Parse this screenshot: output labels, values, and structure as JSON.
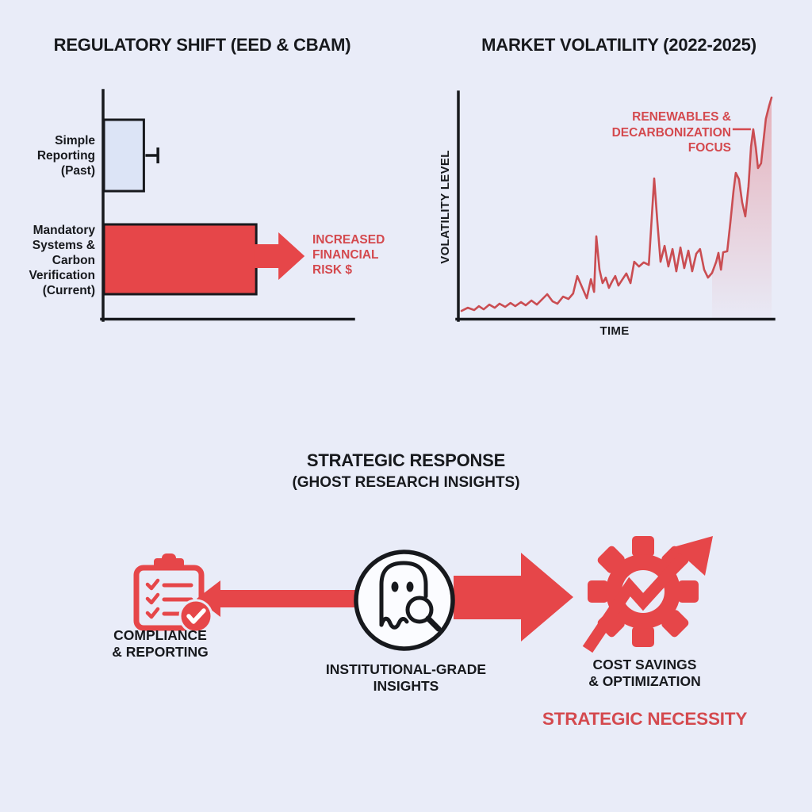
{
  "colors": {
    "background": "#e9ecf8",
    "ink": "#17191d",
    "shape_red": "#e64649",
    "text_red": "#d4494e",
    "line_red": "#ca4d52",
    "light_blue_bar": "#dce4f6",
    "circle_fill": "#fbfcff",
    "area_pink": "#e05a60",
    "white": "#ffffff"
  },
  "panels": {
    "regulatory": {
      "title": "REGULATORY SHIFT (EED & CBAM)",
      "bar1_label": "Simple\nReporting\n(Past)",
      "bar2_label": "Mandatory\nSystems &\nCarbon\nVerification\n(Current)",
      "risk_annotation": "INCREASED\nFINANCIAL\nRISK $"
    },
    "volatility": {
      "title": "MARKET VOLATILITY (2022-2025)",
      "ylabel": "VOLATILITY LEVEL",
      "xlabel": "TIME",
      "annotation": "RENEWABLES &\nDECARBONIZATION\nFOCUS"
    },
    "strategic": {
      "title": "STRATEGIC RESPONSE",
      "subtitle": "(GHOST RESEARCH INSIGHTS)",
      "left_label": "COMPLIANCE\n& REPORTING",
      "center_label": "INSTITUTIONAL-GRADE\nINSIGHTS",
      "right_label": "COST SAVINGS\n& OPTIMIZATION",
      "footer": "STRATEGIC NECESSITY",
      "icons": [
        {
          "name": "compliance-clipboard-icon",
          "meaning": "red clipboard with checklist and check badge"
        },
        {
          "name": "ghost-magnifier-icon",
          "meaning": "ghost with magnifying glass inside black circle"
        },
        {
          "name": "gear-growth-icon",
          "meaning": "red gear crossed by rising zigzag arrow"
        }
      ]
    }
  },
  "chart_data": [
    {
      "type": "bar",
      "orientation": "horizontal",
      "title": "REGULATORY SHIFT (EED & CBAM)",
      "categories": [
        "Simple Reporting (Past)",
        "Mandatory Systems & Carbon Verification (Current)"
      ],
      "values": [
        16,
        61
      ],
      "error_bars": [
        5,
        0
      ],
      "bar_colors": [
        "#dce4f6",
        "#e64649"
      ],
      "value_note": "relative scale, no numeric axis shown",
      "annotation": "INCREASED FINANCIAL RISK $",
      "xlim": [
        0,
        100
      ]
    },
    {
      "type": "line",
      "title": "MARKET VOLATILITY (2022-2025)",
      "xlabel": "TIME",
      "ylabel": "VOLATILITY LEVEL",
      "line_color": "#ca4d52",
      "annotation": "RENEWABLES & DECARBONIZATION FOCUS",
      "annotation_points_to": [
        93.2,
        83.9
      ],
      "area_fill_from_x": 79,
      "xlim": [
        0,
        100
      ],
      "ylim": [
        0,
        100
      ],
      "points": [
        [
          1.0,
          3.8
        ],
        [
          3.0,
          5.2
        ],
        [
          5.0,
          4.2
        ],
        [
          6.5,
          5.9
        ],
        [
          8.0,
          4.5
        ],
        [
          9.8,
          6.6
        ],
        [
          11.5,
          5.2
        ],
        [
          13.0,
          7.0
        ],
        [
          14.8,
          5.6
        ],
        [
          16.5,
          7.3
        ],
        [
          18.0,
          5.9
        ],
        [
          19.8,
          7.7
        ],
        [
          21.3,
          6.3
        ],
        [
          23.1,
          8.4
        ],
        [
          24.8,
          6.6
        ],
        [
          26.6,
          9.1
        ],
        [
          28.1,
          11.2
        ],
        [
          29.8,
          8.0
        ],
        [
          31.3,
          7.0
        ],
        [
          33.1,
          10.1
        ],
        [
          34.8,
          9.1
        ],
        [
          36.3,
          11.5
        ],
        [
          37.6,
          19.2
        ],
        [
          39.1,
          14.3
        ],
        [
          40.6,
          9.4
        ],
        [
          41.9,
          17.8
        ],
        [
          42.9,
          12.2
        ],
        [
          43.6,
          36.7
        ],
        [
          44.6,
          22.0
        ],
        [
          45.6,
          16.1
        ],
        [
          46.6,
          18.5
        ],
        [
          47.6,
          14.0
        ],
        [
          48.6,
          16.8
        ],
        [
          49.6,
          19.2
        ],
        [
          50.6,
          15.0
        ],
        [
          51.9,
          17.8
        ],
        [
          53.1,
          20.3
        ],
        [
          54.4,
          16.1
        ],
        [
          55.6,
          25.5
        ],
        [
          57.1,
          23.4
        ],
        [
          58.6,
          25.2
        ],
        [
          60.2,
          24.1
        ],
        [
          61.9,
          62.2
        ],
        [
          62.9,
          43.0
        ],
        [
          63.9,
          25.5
        ],
        [
          65.2,
          32.5
        ],
        [
          66.4,
          23.4
        ],
        [
          67.7,
          31.1
        ],
        [
          68.9,
          21.3
        ],
        [
          70.2,
          31.8
        ],
        [
          71.4,
          22.7
        ],
        [
          72.7,
          30.4
        ],
        [
          73.9,
          21.3
        ],
        [
          75.2,
          29.0
        ],
        [
          76.4,
          31.1
        ],
        [
          77.7,
          22.0
        ],
        [
          78.9,
          18.5
        ],
        [
          80.2,
          20.6
        ],
        [
          81.5,
          25.5
        ],
        [
          82.2,
          29.4
        ],
        [
          83.0,
          22.0
        ],
        [
          83.7,
          29.7
        ],
        [
          85.0,
          30.1
        ],
        [
          86.0,
          43.0
        ],
        [
          87.0,
          57.0
        ],
        [
          87.7,
          64.7
        ],
        [
          88.7,
          61.9
        ],
        [
          89.7,
          51.7
        ],
        [
          90.7,
          45.5
        ],
        [
          91.7,
          58.7
        ],
        [
          92.5,
          76.2
        ],
        [
          93.2,
          83.9
        ],
        [
          94.0,
          75.9
        ],
        [
          94.7,
          66.8
        ],
        [
          95.7,
          68.9
        ],
        [
          96.5,
          79.4
        ],
        [
          97.2,
          88.5
        ],
        [
          98.2,
          94.1
        ],
        [
          99.0,
          97.9
        ]
      ]
    }
  ]
}
